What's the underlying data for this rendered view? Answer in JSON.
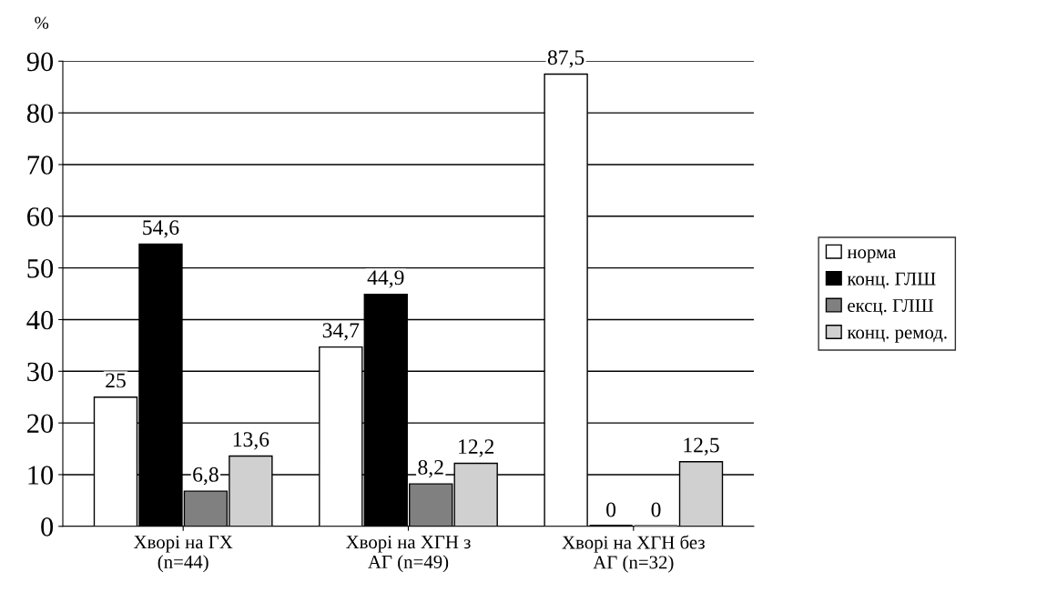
{
  "chart_data": {
    "type": "bar",
    "ylabel": "%",
    "categories": [
      "Хворі на ГХ\n(n=44)",
      "Хворі на ХГН з\nАГ (n=49)",
      "Хворі на ХГН без\nАГ (n=32)"
    ],
    "series": [
      {
        "name": "норма",
        "color": "#ffffff",
        "values": [
          25,
          34.7,
          87.5
        ],
        "value_labels": [
          "25",
          "34,7",
          "87,5"
        ]
      },
      {
        "name": "конц. ГЛШ",
        "color": "#000000",
        "values": [
          54.6,
          44.9,
          0
        ],
        "value_labels": [
          "54,6",
          "44,9",
          "0"
        ]
      },
      {
        "name": "ексц. ГЛШ",
        "color": "#808080",
        "values": [
          6.8,
          8.2,
          0
        ],
        "value_labels": [
          "6,8",
          "8,2",
          "0"
        ]
      },
      {
        "name": "конц. ремод.",
        "color": "#d0d0d0",
        "values": [
          13.6,
          12.2,
          12.5
        ],
        "value_labels": [
          "13,6",
          "12,2",
          "12,5"
        ]
      }
    ],
    "ylim": [
      0,
      90
    ],
    "yticks": [
      0,
      10,
      20,
      30,
      40,
      50,
      60,
      70,
      80,
      90
    ],
    "grid": "y",
    "legend": "right"
  }
}
